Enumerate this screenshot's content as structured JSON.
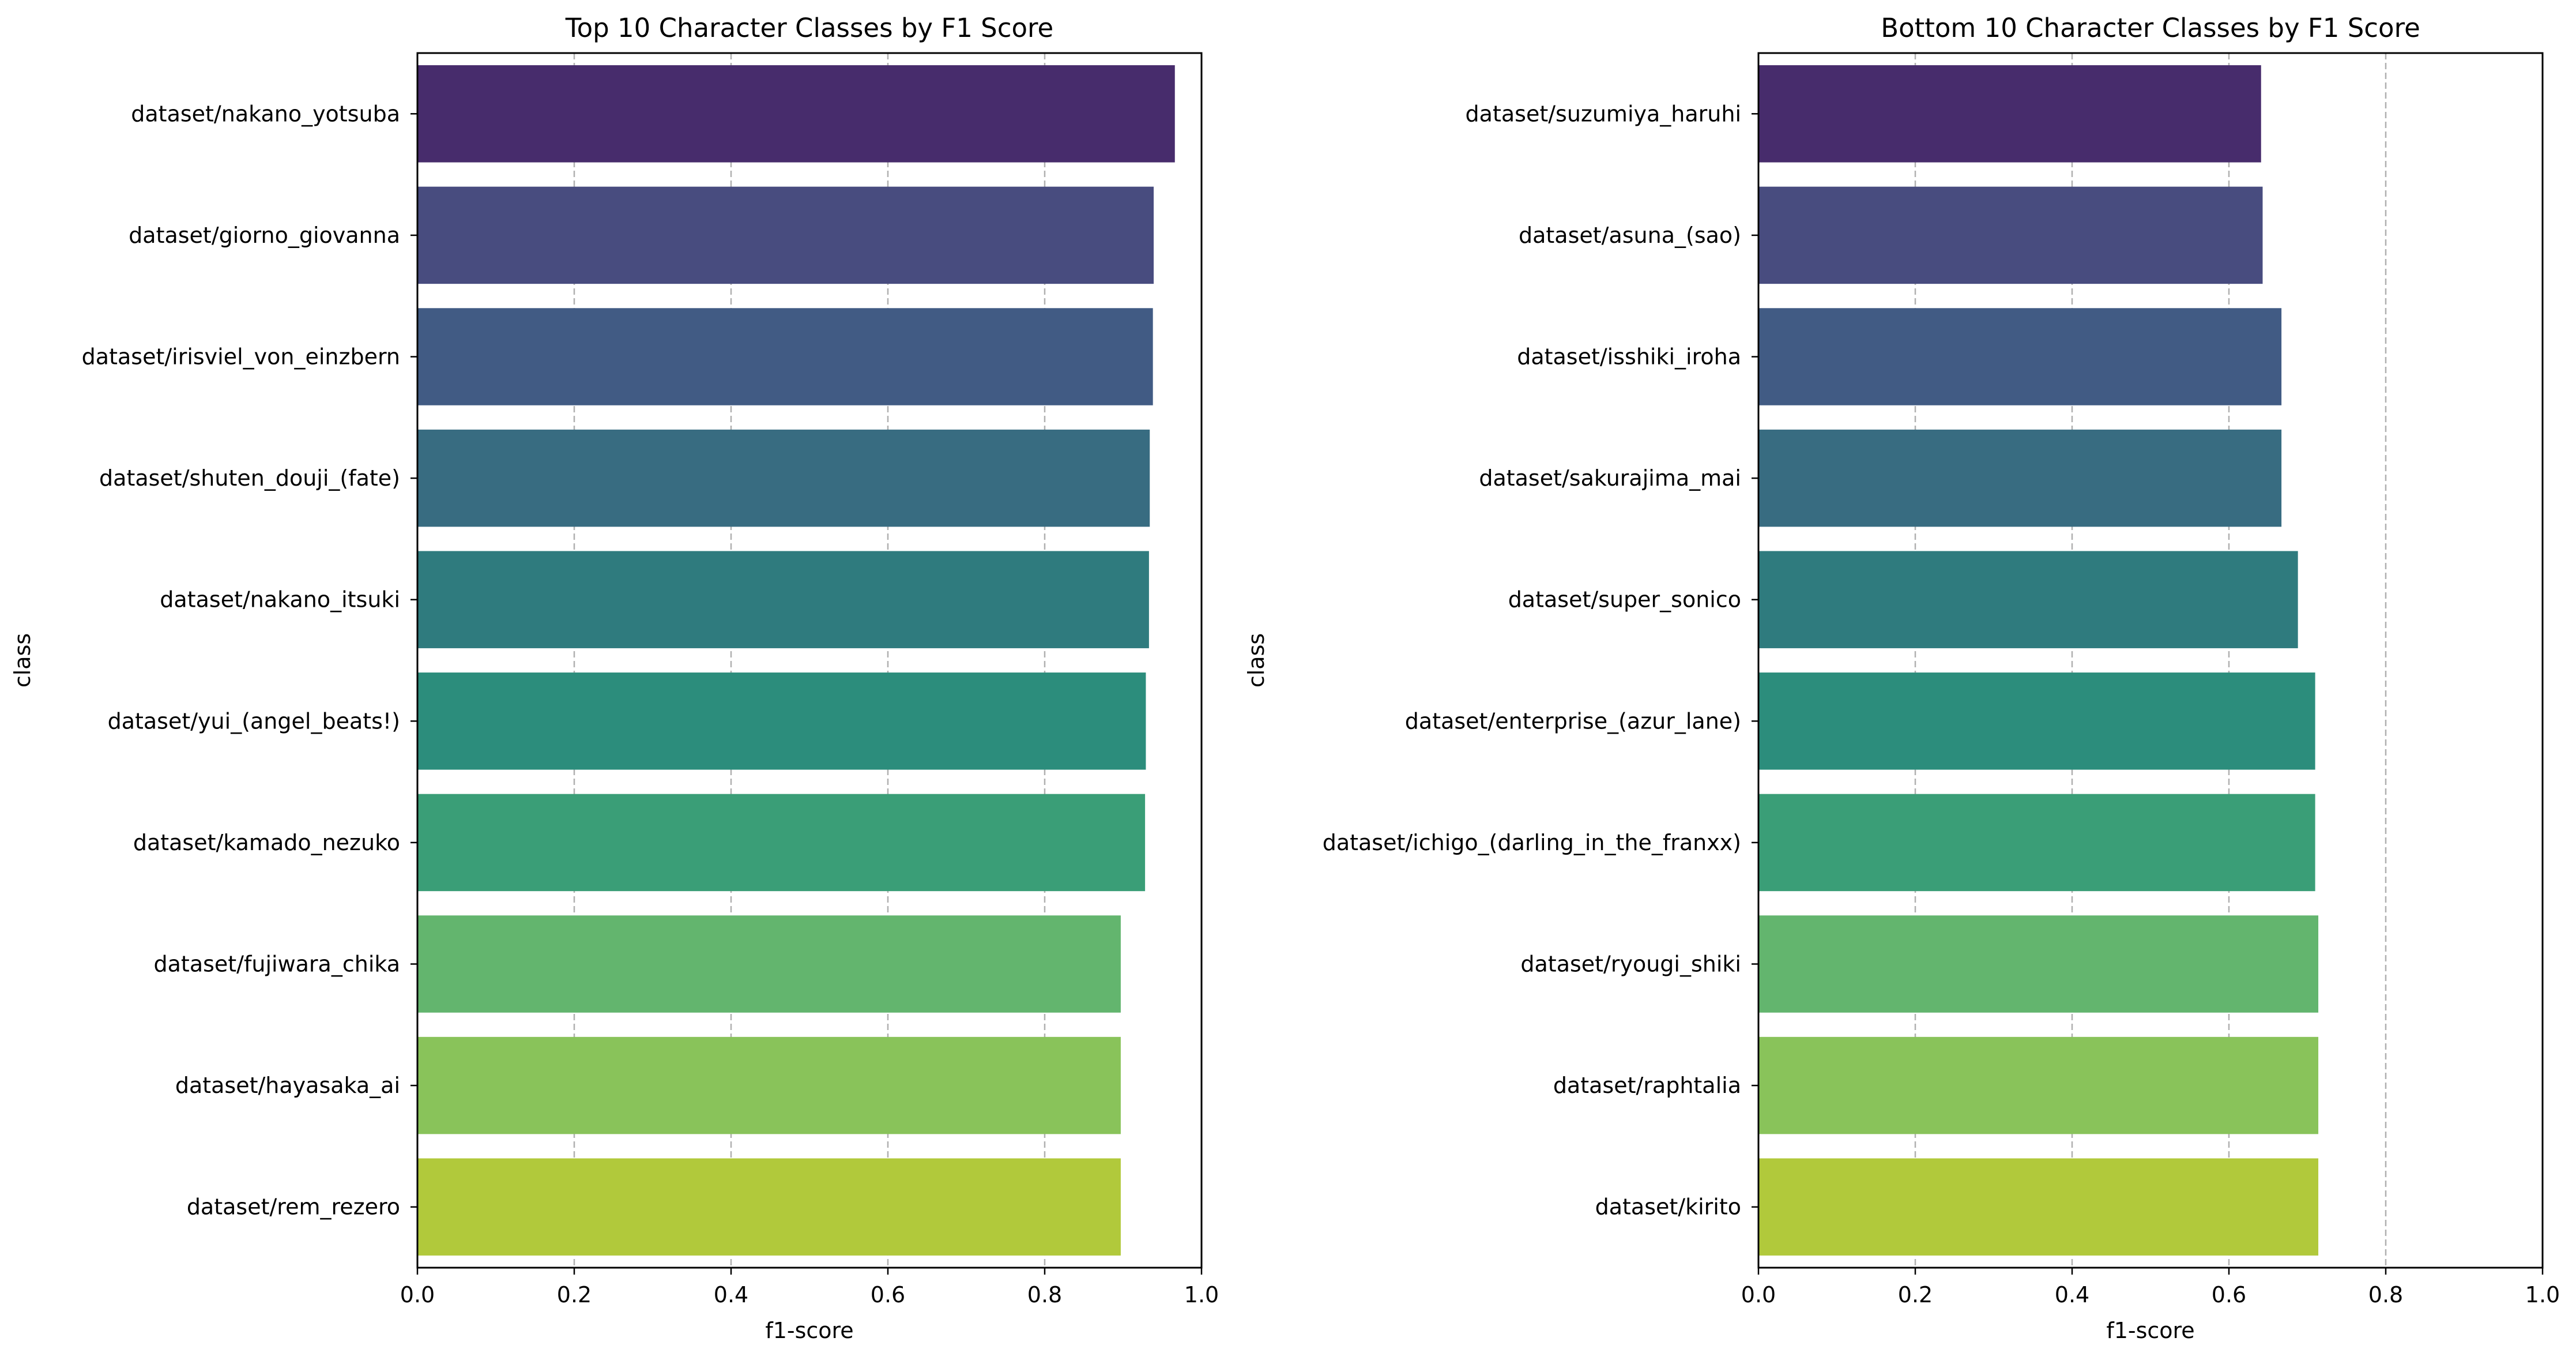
{
  "chart_data": [
    {
      "type": "bar",
      "orientation": "horizontal",
      "title": "Top 10 Character Classes by F1 Score",
      "xlabel": "f1-score",
      "ylabel": "class",
      "xlim": [
        0,
        1
      ],
      "xticks": [
        "0.0",
        "0.2",
        "0.4",
        "0.6",
        "0.8",
        "1.0"
      ],
      "grid": "x-dashed",
      "categories": [
        "dataset/nakano_yotsuba",
        "dataset/giorno_giovanna",
        "dataset/irisviel_von_einzbern",
        "dataset/shuten_douji_(fate)",
        "dataset/nakano_itsuki",
        "dataset/yui_(angel_beats!)",
        "dataset/kamado_nezuko",
        "dataset/fujiwara_chika",
        "dataset/hayasaka_ai",
        "dataset/rem_rezero"
      ],
      "values": [
        0.966,
        0.939,
        0.938,
        0.934,
        0.933,
        0.929,
        0.928,
        0.897,
        0.897,
        0.897
      ]
    },
    {
      "type": "bar",
      "orientation": "horizontal",
      "title": "Bottom 10 Character Classes by F1 Score",
      "xlabel": "f1-score",
      "ylabel": "class",
      "xlim": [
        0,
        1
      ],
      "xticks": [
        "0.0",
        "0.2",
        "0.4",
        "0.6",
        "0.8",
        "1.0"
      ],
      "grid": "x-dashed",
      "categories": [
        "dataset/suzumiya_haruhi",
        "dataset/asuna_(sao)",
        "dataset/isshiki_iroha",
        "dataset/sakurajima_mai",
        "dataset/super_sonico",
        "dataset/enterprise_(azur_lane)",
        "dataset/ichigo_(darling_in_the_franxx)",
        "dataset/ryougi_shiki",
        "dataset/raphtalia",
        "dataset/kirito"
      ],
      "values": [
        0.641,
        0.643,
        0.667,
        0.667,
        0.688,
        0.71,
        0.71,
        0.714,
        0.714,
        0.714
      ]
    }
  ],
  "palette": [
    "#472c6c",
    "#484c7f",
    "#415b84",
    "#386c81",
    "#2f7b7e",
    "#2c8d7c",
    "#3a9e77",
    "#63b56e",
    "#89c35a",
    "#b1c93b"
  ]
}
